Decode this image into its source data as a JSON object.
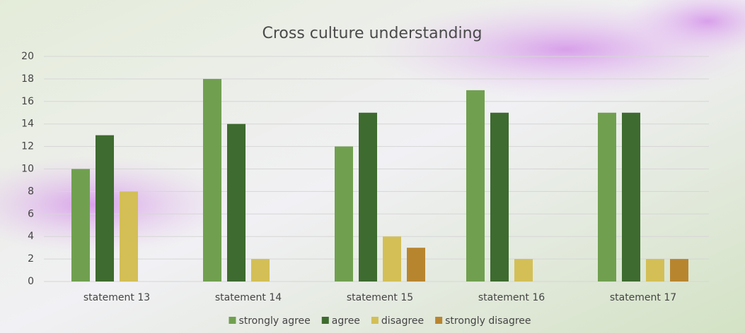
{
  "chart_data": {
    "type": "bar",
    "title": "Cross culture understanding",
    "categories": [
      "statement 13",
      "statement 14",
      "statement 15",
      "statement 16",
      "statement 17"
    ],
    "series": [
      {
        "name": "strongly agree",
        "color": "#70a04f",
        "values": [
          10,
          18,
          12,
          17,
          15
        ]
      },
      {
        "name": "agree",
        "color": "#3e6b2f",
        "values": [
          13,
          14,
          15,
          15,
          15
        ]
      },
      {
        "name": "disagree",
        "color": "#d3bf56",
        "values": [
          8,
          2,
          4,
          2,
          2
        ]
      },
      {
        "name": "strongly disagree",
        "color": "#b8852f",
        "values": [
          0,
          0,
          3,
          0,
          2
        ]
      }
    ],
    "ylim": [
      0,
      20
    ],
    "yticks": [
      0,
      2,
      4,
      6,
      8,
      10,
      12,
      14,
      16,
      18,
      20
    ],
    "grid": true,
    "legend": "bottom"
  }
}
